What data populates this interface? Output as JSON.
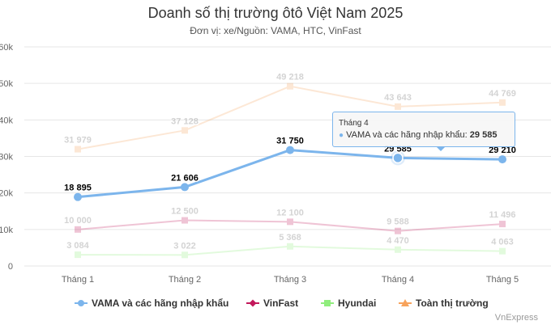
{
  "chart_data": {
    "type": "line",
    "title": "Doanh số thị trường ôtô Việt Nam 2025",
    "subtitle": "Đơn vị: xe/Nguồn: VAMA, HTC, VinFast",
    "categories": [
      "Tháng 1",
      "Tháng 2",
      "Tháng 3",
      "Tháng 4",
      "Tháng 5"
    ],
    "y_ticks": [
      "0",
      "10k",
      "20k",
      "30k",
      "40k",
      "50k",
      "60k"
    ],
    "ylim": [
      0,
      60000
    ],
    "grid": true,
    "legend_position": "bottom",
    "series": [
      {
        "name": "Toàn thị trường",
        "color": "#f7a35c",
        "faded": true,
        "values": [
          31979,
          37128,
          49218,
          43643,
          44769
        ],
        "labels": [
          "31 979",
          "37 128",
          "49 218",
          "43 643",
          "44 769"
        ]
      },
      {
        "name": "VinFast",
        "color": "#c2185b",
        "faded": true,
        "values": [
          10000,
          12500,
          12100,
          9588,
          11496
        ],
        "labels": [
          "10 000",
          "12 500",
          "12 100",
          "9 588",
          "11 496"
        ]
      },
      {
        "name": "Hyundai",
        "color": "#90ed7d",
        "faded": true,
        "values": [
          3084,
          3022,
          5368,
          4470,
          4063
        ],
        "labels": [
          "3 084",
          "3 022",
          "5 368",
          "4 470",
          "4 063"
        ]
      },
      {
        "name": "VAMA và các hãng nhập khẩu",
        "color": "#7cb5ec",
        "faded": false,
        "values": [
          18895,
          21606,
          31750,
          29585,
          29210
        ],
        "labels": [
          "18 895",
          "21 606",
          "31 750",
          "29 585",
          "29 210"
        ]
      }
    ],
    "legend_order": [
      "VAMA và các hãng nhập khẩu",
      "VinFast",
      "Hyundai",
      "Toàn thị trường"
    ]
  },
  "tooltip": {
    "header": "Tháng 4",
    "bullet": "●",
    "series_label": "VAMA và các hãng nhập khẩu:",
    "value": "29 585"
  },
  "credits": "VnExpress"
}
